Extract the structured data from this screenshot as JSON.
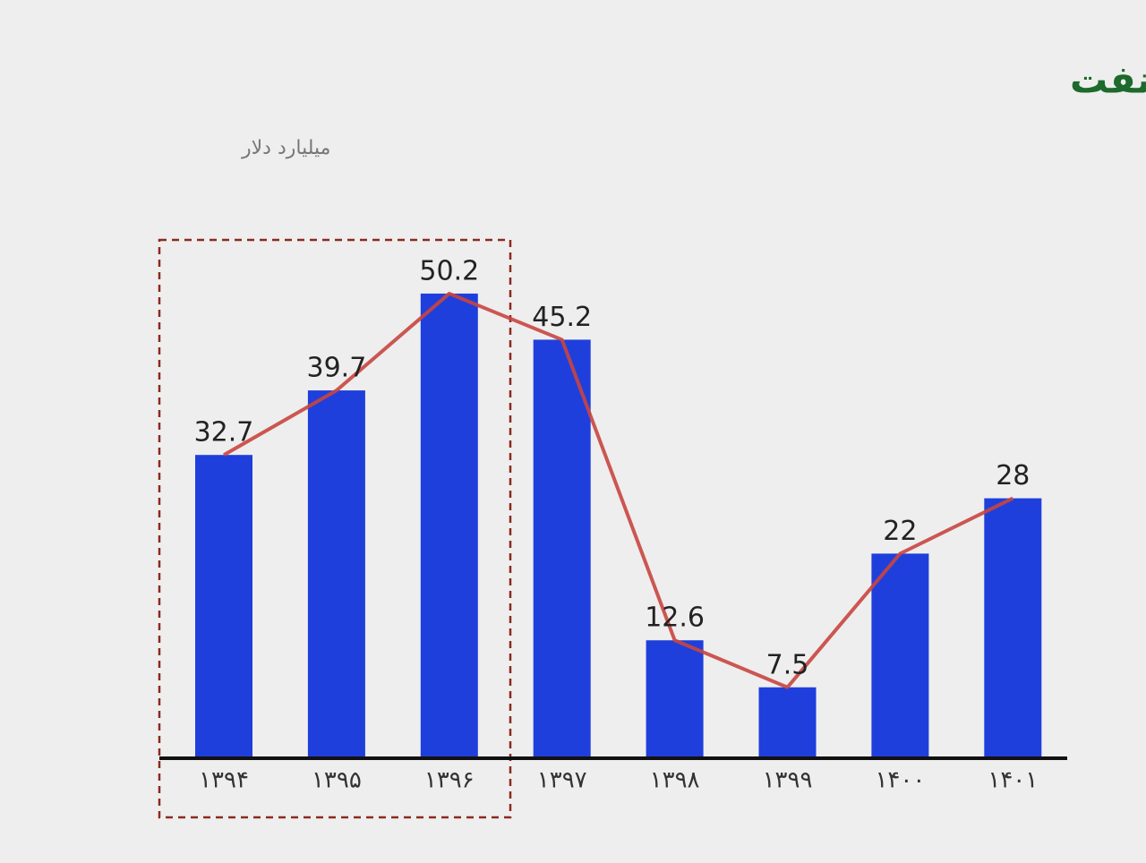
{
  "chart_data": {
    "type": "bar_line",
    "title": "نمودار منابع وصولي دولت ناشي از ارز صادرات نفت",
    "subtitle": "میلیارد دلار",
    "categories": [
      "۱۳۹۴",
      "۱۳۹۵",
      "۱۳۹۶",
      "۱۳۹۷",
      "۱۳۹۸",
      "۱۳۹۹",
      "۱۴۰۰",
      "۱۴۰۱"
    ],
    "values": [
      32.7,
      39.7,
      50.2,
      45.2,
      12.6,
      7.5,
      22,
      28
    ],
    "color": "#1f3fdc",
    "line_color": "#c8453f"
  }
}
